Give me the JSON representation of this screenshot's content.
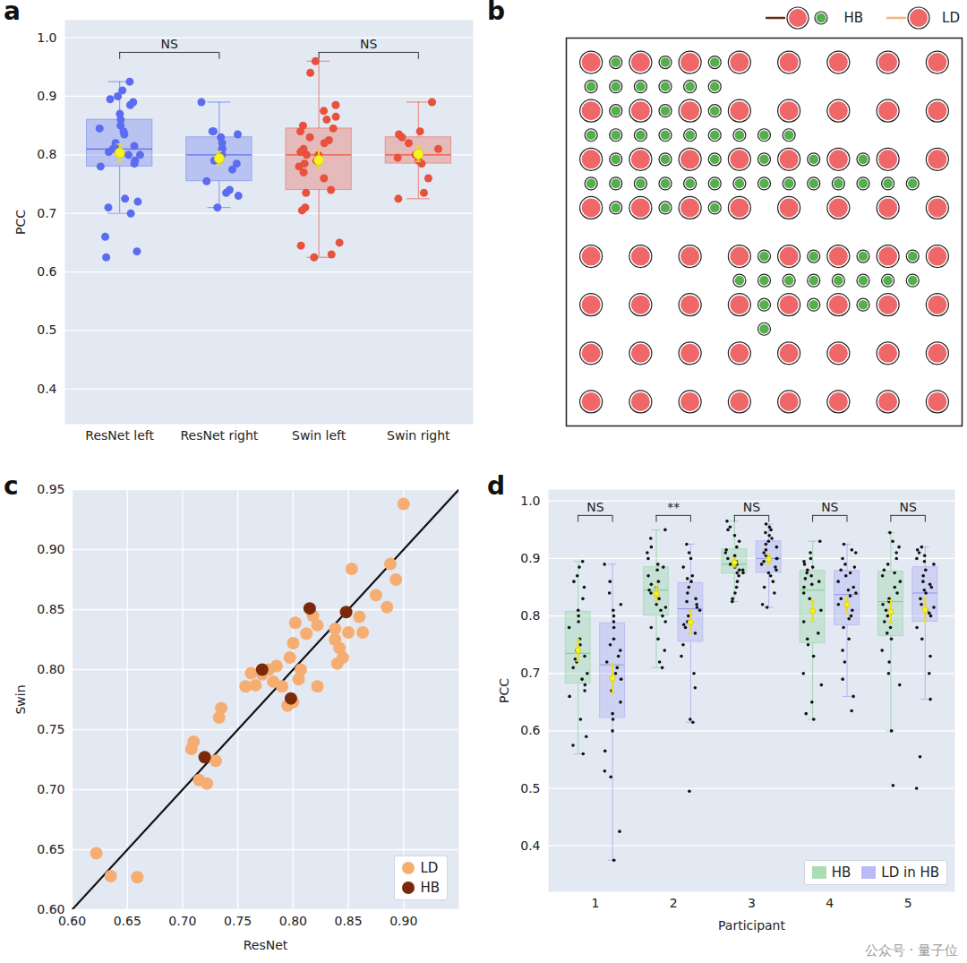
{
  "watermark": "公众号 · 量子位",
  "chart_data": [
    {
      "panel": "a",
      "type": "box",
      "categories": [
        "ResNet left",
        "ResNet right",
        "Swin left",
        "Swin right"
      ],
      "colors": [
        "#5b6cf0",
        "#5b6cf0",
        "#e8513c",
        "#e8513c"
      ],
      "values": [
        [
          0.925,
          0.91,
          0.9,
          0.895,
          0.89,
          0.885,
          0.87,
          0.86,
          0.85,
          0.845,
          0.84,
          0.835,
          0.82,
          0.815,
          0.81,
          0.81,
          0.805,
          0.8,
          0.8,
          0.79,
          0.785,
          0.78,
          0.725,
          0.72,
          0.71,
          0.7,
          0.66,
          0.635,
          0.625
        ],
        [
          0.89,
          0.84,
          0.84,
          0.835,
          0.83,
          0.82,
          0.81,
          0.81,
          0.8,
          0.79,
          0.785,
          0.775,
          0.755,
          0.74,
          0.735,
          0.73,
          0.71
        ],
        [
          0.96,
          0.94,
          0.885,
          0.875,
          0.865,
          0.86,
          0.85,
          0.845,
          0.84,
          0.83,
          0.825,
          0.82,
          0.81,
          0.805,
          0.8,
          0.8,
          0.79,
          0.785,
          0.78,
          0.77,
          0.76,
          0.74,
          0.735,
          0.71,
          0.705,
          0.65,
          0.645,
          0.63,
          0.625
        ],
        [
          0.89,
          0.84,
          0.835,
          0.83,
          0.82,
          0.81,
          0.8,
          0.795,
          0.79,
          0.785,
          0.76,
          0.735,
          0.725
        ]
      ],
      "ylabel": "PCC",
      "ylim": [
        0.34,
        1.03
      ],
      "yticks": [
        0.4,
        0.5,
        0.6,
        0.7,
        0.8,
        0.9,
        {
          "value": 1.0,
          "label": "1.0"
        }
      ],
      "grid": true,
      "annotations": [
        {
          "between": [
            "ResNet left",
            "ResNet right"
          ],
          "text": "NS"
        },
        {
          "between": [
            "Swin left",
            "Swin right"
          ],
          "text": "NS"
        }
      ]
    },
    {
      "panel": "b",
      "type": "scatter",
      "tick_labels": false,
      "legend": "top-right",
      "legend_items": [
        {
          "name": "HB",
          "color": "#6e2a0c"
        },
        {
          "name": "LD",
          "color": "#f5b27a"
        }
      ],
      "xlim": [
        -1,
        15
      ],
      "ylim": [
        -1,
        15
      ],
      "series": [
        {
          "color": "#f0676a",
          "marker": "large",
          "x": [
            0,
            2,
            4,
            6,
            8,
            10,
            12,
            14,
            0,
            2,
            4,
            6,
            8,
            10,
            12,
            14,
            0,
            2,
            4,
            6,
            8,
            10,
            12,
            14,
            0,
            2,
            4,
            6,
            8,
            10,
            12,
            14,
            0,
            2,
            4,
            6,
            8,
            10,
            12,
            14,
            0,
            2,
            4,
            6,
            8,
            10,
            12,
            14,
            0,
            2,
            4,
            6,
            8,
            10,
            12,
            14,
            0,
            2,
            4,
            6,
            8,
            10,
            12,
            14
          ],
          "y": [
            0,
            0,
            0,
            0,
            0,
            0,
            0,
            0,
            2,
            2,
            2,
            2,
            2,
            2,
            2,
            2,
            4,
            4,
            4,
            4,
            4,
            4,
            4,
            4,
            6,
            6,
            6,
            6,
            6,
            6,
            6,
            6,
            8,
            8,
            8,
            8,
            8,
            8,
            8,
            8,
            10,
            10,
            10,
            10,
            10,
            10,
            10,
            10,
            12,
            12,
            12,
            12,
            12,
            12,
            12,
            12,
            14,
            14,
            14,
            14,
            14,
            14,
            14,
            14
          ]
        },
        {
          "color": "#55b04b",
          "marker": "small",
          "x": [
            1,
            3,
            5,
            0,
            1,
            2,
            3,
            4,
            5,
            1,
            3,
            5,
            0,
            1,
            2,
            3,
            4,
            5,
            6,
            7,
            8,
            1,
            3,
            5,
            7,
            9,
            11,
            0,
            1,
            2,
            3,
            4,
            5,
            6,
            7,
            8,
            9,
            10,
            11,
            12,
            13,
            1,
            3,
            5,
            7,
            9,
            11,
            13,
            6,
            7,
            8,
            9,
            10,
            11,
            12,
            13,
            7,
            9,
            11,
            7
          ],
          "y": [
            0,
            0,
            0,
            1,
            1,
            1,
            1,
            1,
            1,
            2,
            2,
            2,
            3,
            3,
            3,
            3,
            3,
            3,
            3,
            3,
            3,
            4,
            4,
            4,
            4,
            4,
            4,
            5,
            5,
            5,
            5,
            5,
            5,
            5,
            5,
            5,
            5,
            5,
            5,
            5,
            5,
            6,
            6,
            6,
            8,
            8,
            8,
            8,
            9,
            9,
            9,
            9,
            9,
            9,
            9,
            9,
            10,
            10,
            10,
            11
          ]
        }
      ]
    },
    {
      "panel": "c",
      "type": "scatter",
      "xlabel": "ResNet",
      "ylabel": "Swin",
      "xlim": [
        0.6,
        0.95
      ],
      "ylim": [
        0.6,
        0.95
      ],
      "xticks": [
        {
          "value": 0.6,
          "label": "0.60"
        },
        {
          "value": 0.65,
          "label": "0.65"
        },
        {
          "value": 0.7,
          "label": "0.70"
        },
        {
          "value": 0.75,
          "label": "0.75"
        },
        {
          "value": 0.8,
          "label": "0.80"
        },
        {
          "value": 0.85,
          "label": "0.85"
        },
        {
          "value": 0.9,
          "label": "0.90"
        }
      ],
      "yticks": [
        {
          "value": 0.6,
          "label": "0.60"
        },
        {
          "value": 0.65,
          "label": "0.65"
        },
        {
          "value": 0.7,
          "label": "0.70"
        },
        {
          "value": 0.75,
          "label": "0.75"
        },
        {
          "value": 0.8,
          "label": "0.80"
        },
        {
          "value": 0.85,
          "label": "0.85"
        },
        {
          "value": 0.9,
          "label": "0.90"
        },
        {
          "value": 0.95,
          "label": "0.95"
        }
      ],
      "grid": true,
      "legend": "bottom-right",
      "series": [
        {
          "name": "LD",
          "color": "#f6ad72",
          "x": [
            0.622,
            0.635,
            0.659,
            0.708,
            0.71,
            0.715,
            0.722,
            0.73,
            0.733,
            0.735,
            0.757,
            0.762,
            0.766,
            0.772,
            0.778,
            0.782,
            0.785,
            0.79,
            0.795,
            0.797,
            0.8,
            0.8,
            0.802,
            0.805,
            0.807,
            0.812,
            0.818,
            0.822,
            0.822,
            0.838,
            0.838,
            0.84,
            0.842,
            0.845,
            0.85,
            0.853,
            0.86,
            0.863,
            0.875,
            0.885,
            0.888,
            0.893,
            0.9
          ],
          "y": [
            0.647,
            0.628,
            0.627,
            0.734,
            0.74,
            0.708,
            0.705,
            0.724,
            0.76,
            0.768,
            0.786,
            0.797,
            0.787,
            0.796,
            0.8,
            0.79,
            0.803,
            0.786,
            0.77,
            0.81,
            0.773,
            0.822,
            0.839,
            0.792,
            0.8,
            0.83,
            0.845,
            0.837,
            0.786,
            0.825,
            0.834,
            0.805,
            0.818,
            0.81,
            0.831,
            0.884,
            0.844,
            0.831,
            0.862,
            0.852,
            0.888,
            0.875,
            0.938
          ]
        },
        {
          "name": "HB",
          "color": "#7a2a0a",
          "x": [
            0.72,
            0.772,
            0.798,
            0.815,
            0.848
          ],
          "y": [
            0.727,
            0.8,
            0.776,
            0.851,
            0.848
          ]
        }
      ]
    },
    {
      "panel": "d",
      "type": "box",
      "categories": [
        "1",
        "2",
        "3",
        "4",
        "5"
      ],
      "xlabel": "Participant",
      "ylabel": "PCC",
      "ylim": [
        0.32,
        1.02
      ],
      "yticks": [
        0.4,
        0.5,
        0.6,
        0.7,
        0.8,
        0.9,
        {
          "value": 1.0,
          "label": "1.0"
        }
      ],
      "grid": true,
      "legend": "bottom-right",
      "series": [
        {
          "name": "HB",
          "color": "#86cf95",
          "values": [
            [
              0.895,
              0.885,
              0.87,
              0.86,
              0.85,
              0.83,
              0.81,
              0.8,
              0.79,
              0.78,
              0.76,
              0.75,
              0.74,
              0.73,
              0.725,
              0.72,
              0.71,
              0.7,
              0.69,
              0.68,
              0.67,
              0.66,
              0.62,
              0.59,
              0.575,
              0.56
            ],
            [
              0.95,
              0.935,
              0.92,
              0.91,
              0.9,
              0.89,
              0.885,
              0.88,
              0.87,
              0.86,
              0.855,
              0.85,
              0.845,
              0.84,
              0.83,
              0.82,
              0.815,
              0.81,
              0.8,
              0.79,
              0.78,
              0.76,
              0.74,
              0.72,
              0.71
            ],
            [
              0.965,
              0.955,
              0.95,
              0.94,
              0.93,
              0.92,
              0.915,
              0.91,
              0.905,
              0.9,
              0.895,
              0.89,
              0.89,
              0.885,
              0.88,
              0.88,
              0.875,
              0.875,
              0.87,
              0.86,
              0.85,
              0.84,
              0.83,
              0.825
            ],
            [
              0.93,
              0.91,
              0.9,
              0.895,
              0.89,
              0.885,
              0.88,
              0.875,
              0.87,
              0.865,
              0.86,
              0.855,
              0.85,
              0.84,
              0.83,
              0.81,
              0.79,
              0.77,
              0.76,
              0.75,
              0.73,
              0.7,
              0.68,
              0.65,
              0.63,
              0.62
            ],
            [
              0.945,
              0.93,
              0.92,
              0.91,
              0.9,
              0.89,
              0.88,
              0.875,
              0.87,
              0.86,
              0.85,
              0.84,
              0.83,
              0.825,
              0.82,
              0.81,
              0.8,
              0.79,
              0.78,
              0.77,
              0.76,
              0.74,
              0.72,
              0.7,
              0.68,
              0.6,
              0.505
            ]
          ]
        },
        {
          "name": "LD in HB",
          "color": "#9d9df2",
          "values": [
            [
              0.89,
              0.86,
              0.84,
              0.82,
              0.81,
              0.8,
              0.79,
              0.78,
              0.76,
              0.75,
              0.74,
              0.73,
              0.72,
              0.71,
              0.7,
              0.69,
              0.67,
              0.65,
              0.63,
              0.62,
              0.6,
              0.565,
              0.53,
              0.52,
              0.425,
              0.375
            ],
            [
              0.925,
              0.91,
              0.9,
              0.885,
              0.87,
              0.865,
              0.86,
              0.85,
              0.84,
              0.83,
              0.825,
              0.82,
              0.815,
              0.81,
              0.8,
              0.79,
              0.785,
              0.78,
              0.77,
              0.75,
              0.73,
              0.7,
              0.675,
              0.62,
              0.615,
              0.495
            ],
            [
              0.96,
              0.955,
              0.95,
              0.945,
              0.94,
              0.935,
              0.93,
              0.925,
              0.92,
              0.915,
              0.91,
              0.905,
              0.9,
              0.9,
              0.895,
              0.89,
              0.885,
              0.88,
              0.875,
              0.87,
              0.86,
              0.85,
              0.84,
              0.82,
              0.815
            ],
            [
              0.925,
              0.915,
              0.91,
              0.9,
              0.89,
              0.885,
              0.88,
              0.875,
              0.87,
              0.86,
              0.85,
              0.845,
              0.84,
              0.835,
              0.83,
              0.82,
              0.81,
              0.8,
              0.795,
              0.78,
              0.76,
              0.74,
              0.72,
              0.69,
              0.66,
              0.635
            ],
            [
              0.92,
              0.915,
              0.91,
              0.905,
              0.9,
              0.895,
              0.89,
              0.88,
              0.87,
              0.86,
              0.855,
              0.85,
              0.845,
              0.84,
              0.83,
              0.82,
              0.815,
              0.81,
              0.805,
              0.8,
              0.78,
              0.76,
              0.73,
              0.7,
              0.655,
              0.555,
              0.5
            ]
          ]
        }
      ],
      "annotations": [
        {
          "category": "1",
          "text": "NS"
        },
        {
          "category": "2",
          "text": "**"
        },
        {
          "category": "3",
          "text": "NS"
        },
        {
          "category": "4",
          "text": "NS"
        },
        {
          "category": "5",
          "text": "NS"
        }
      ]
    }
  ]
}
